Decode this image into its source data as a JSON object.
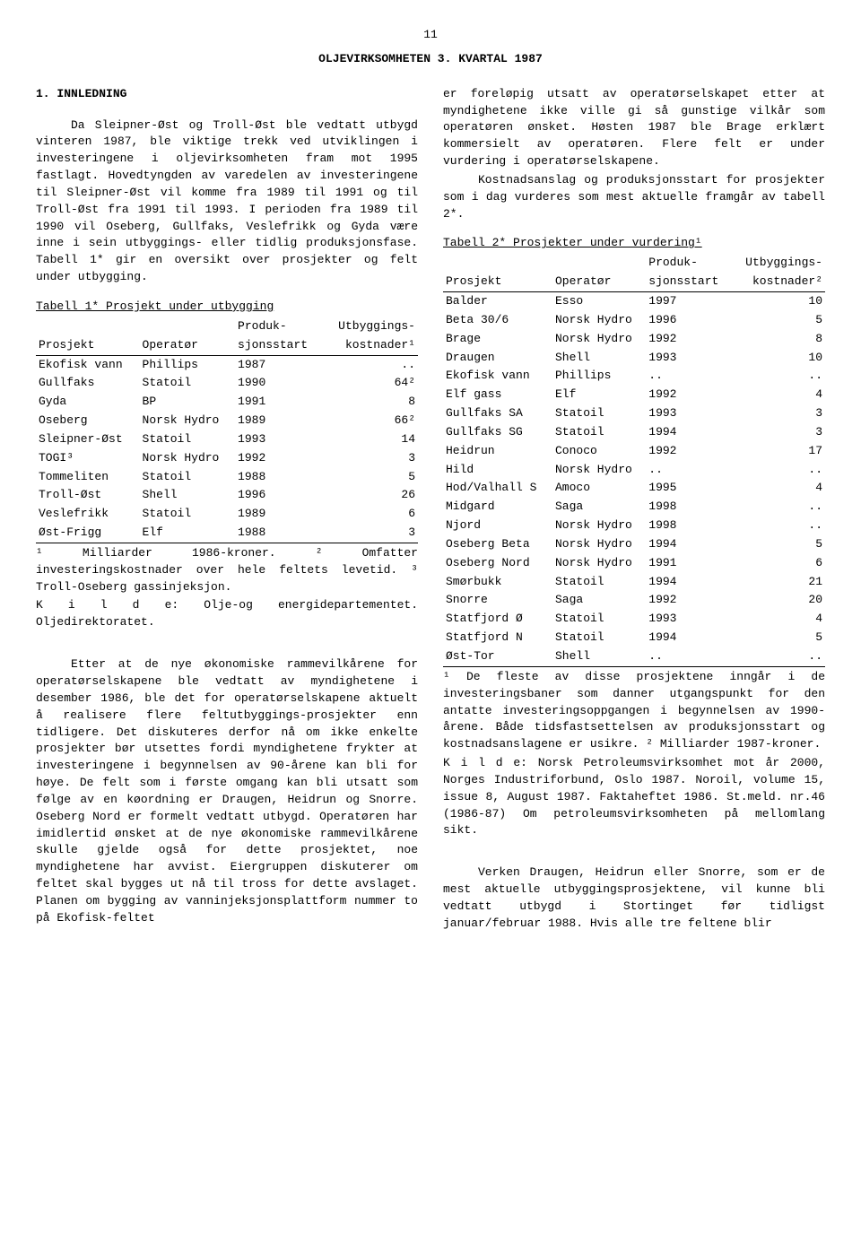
{
  "page_number": "11",
  "main_title": "OLJEVIRKSOMHETEN 3. KVARTAL 1987",
  "section1": {
    "heading": "1.  INNLEDNING",
    "para1": "Da Sleipner-Øst og Troll-Øst ble vedtatt utbygd vinteren 1987, ble viktige trekk ved utviklingen i investeringene i oljevirksomheten fram mot 1995 fastlagt. Hovedtyngden av varedelen av investeringene til Sleipner-Øst vil komme fra 1989 til 1991 og til Troll-Øst fra 1991 til 1993. I perioden fra 1989 til 1990 vil Oseberg, Gullfaks, Veslefrikk og Gyda være inne i sein utbyggings- eller tidlig produksjonsfase. Tabell 1* gir en oversikt over prosjekter og felt under utbygging.",
    "para2": "Etter at de nye økonomiske rammevilkårene for operatørselskapene ble vedtatt av myndighetene i desember 1986, ble det for operatørselskapene aktuelt å realisere flere feltutbyggings-prosjekter enn tidligere. Det diskuteres derfor nå om ikke enkelte prosjekter bør utsettes fordi myndighetene frykter at investeringene i begynnelsen av 90-årene kan bli for høye. De felt som i første omgang kan bli utsatt som følge av en køordning er Draugen, Heidrun og Snorre. Oseberg Nord er formelt vedtatt utbygd. Operatøren har imidlertid ønsket at de nye økonomiske rammevilkårene skulle gjelde også for dette prosjektet, noe myndighetene har avvist. Eiergruppen diskuterer om feltet skal bygges ut nå til tross for dette avslaget. Planen om bygging av vanninjeksjonsplattform nummer to på Ekofisk-feltet",
    "para2b": "er foreløpig utsatt av operatørselskapet etter at myndighetene ikke ville gi så gunstige vilkår som operatøren ønsket. Høsten 1987 ble Brage erklært kommersielt av operatøren. Flere felt er under vurdering i operatørselskapene.",
    "para3": "Kostnadsanslag og produksjonsstart for prosjekter som i dag vurderes som mest aktuelle framgår av tabell 2*.",
    "para4": "Verken Draugen, Heidrun eller Snorre, som er de mest aktuelle utbyggingsprosjektene, vil kunne bli vedtatt utbygd i Stortinget før tidligst januar/februar 1988. Hvis alle tre feltene blir"
  },
  "table1": {
    "title": "Tabell 1* Prosjekt under utbygging",
    "col_produk": "Produk-",
    "col_utbygg": "Utbyggings-",
    "col_prosjekt": "Prosjekt",
    "col_operator": "Operatør",
    "col_sjonsstart": "sjonsstart",
    "col_kostnader": "kostnader¹",
    "rows": [
      {
        "p": "Ekofisk vann",
        "o": "Phillips",
        "s": "1987",
        "k": ".."
      },
      {
        "p": "Gullfaks",
        "o": "Statoil",
        "s": "1990",
        "k": "64²"
      },
      {
        "p": "Gyda",
        "o": "BP",
        "s": "1991",
        "k": "8"
      },
      {
        "p": "Oseberg",
        "o": "Norsk Hydro",
        "s": "1989",
        "k": "66²"
      },
      {
        "p": "Sleipner-Øst",
        "o": "Statoil",
        "s": "1993",
        "k": "14"
      },
      {
        "p": "TOGI³",
        "o": "Norsk Hydro",
        "s": "1992",
        "k": "3"
      },
      {
        "p": "Tommeliten",
        "o": "Statoil",
        "s": "1988",
        "k": "5"
      },
      {
        "p": "Troll-Øst",
        "o": "Shell",
        "s": "1996",
        "k": "26"
      },
      {
        "p": "Veslefrikk",
        "o": "Statoil",
        "s": "1989",
        "k": "6"
      },
      {
        "p": "Øst-Frigg",
        "o": "Elf",
        "s": "1988",
        "k": "3"
      }
    ],
    "footnote": "¹ Milliarder 1986-kroner. ² Omfatter investeringskostnader over hele feltets levetid. ³ Troll-Oseberg gassinjeksjon.",
    "kilde": "K i l d e: Olje-og energidepartementet. Oljedirektoratet."
  },
  "table2": {
    "title": "Tabell 2*  Prosjekter under vurdering¹",
    "col_produk": "Produk-",
    "col_utbygg": "Utbyggings-",
    "col_prosjekt": "Prosjekt",
    "col_operator": "Operatør",
    "col_sjonsstart": "sjonsstart",
    "col_kostnader": "kostnader²",
    "rows": [
      {
        "p": "Balder",
        "o": "Esso",
        "s": "1997",
        "k": "10"
      },
      {
        "p": "Beta 30/6",
        "o": "Norsk Hydro",
        "s": "1996",
        "k": "5"
      },
      {
        "p": "Brage",
        "o": "Norsk Hydro",
        "s": "1992",
        "k": "8"
      },
      {
        "p": "Draugen",
        "o": "Shell",
        "s": "1993",
        "k": "10"
      },
      {
        "p": "Ekofisk vann",
        "o": "Phillips",
        "s": "..",
        "k": ".."
      },
      {
        "p": "Elf gass",
        "o": "Elf",
        "s": "1992",
        "k": "4"
      },
      {
        "p": "Gullfaks SA",
        "o": "Statoil",
        "s": "1993",
        "k": "3"
      },
      {
        "p": "Gullfaks SG",
        "o": "Statoil",
        "s": "1994",
        "k": "3"
      },
      {
        "p": "Heidrun",
        "o": "Conoco",
        "s": "1992",
        "k": "17"
      },
      {
        "p": "Hild",
        "o": "Norsk Hydro",
        "s": "..",
        "k": ".."
      },
      {
        "p": "Hod/Valhall S",
        "o": "Amoco",
        "s": "1995",
        "k": "4"
      },
      {
        "p": "Midgard",
        "o": "Saga",
        "s": "1998",
        "k": ".."
      },
      {
        "p": "Njord",
        "o": "Norsk Hydro",
        "s": "1998",
        "k": ".."
      },
      {
        "p": "Oseberg Beta",
        "o": "Norsk Hydro",
        "s": "1994",
        "k": "5"
      },
      {
        "p": "Oseberg Nord",
        "o": "Norsk Hydro",
        "s": "1991",
        "k": "6"
      },
      {
        "p": "Smørbukk",
        "o": "Statoil",
        "s": "1994",
        "k": "21"
      },
      {
        "p": "Snorre",
        "o": "Saga",
        "s": "1992",
        "k": "20"
      },
      {
        "p": "Statfjord Ø",
        "o": "Statoil",
        "s": "1993",
        "k": "4"
      },
      {
        "p": "Statfjord N",
        "o": "Statoil",
        "s": "1994",
        "k": "5"
      },
      {
        "p": "Øst-Tor",
        "o": "Shell",
        "s": "..",
        "k": ".."
      }
    ],
    "footnote": "¹ De fleste av disse prosjektene inngår i de investeringsbaner som danner utgangspunkt for den antatte investeringsoppgangen i begynnelsen av 1990-årene. Både tidsfastsettelsen av produksjonsstart og kostnadsanslagene er usikre. ² Milliarder 1987-kroner.",
    "kilde": "K i l d e: Norsk Petroleumsvirksomhet mot år 2000, Norges Industriforbund, Oslo 1987. Noroil, volume 15, issue 8, August 1987. Faktaheftet 1986. St.meld. nr.46 (1986-87) Om petroleumsvirksomheten på mellomlang sikt."
  }
}
